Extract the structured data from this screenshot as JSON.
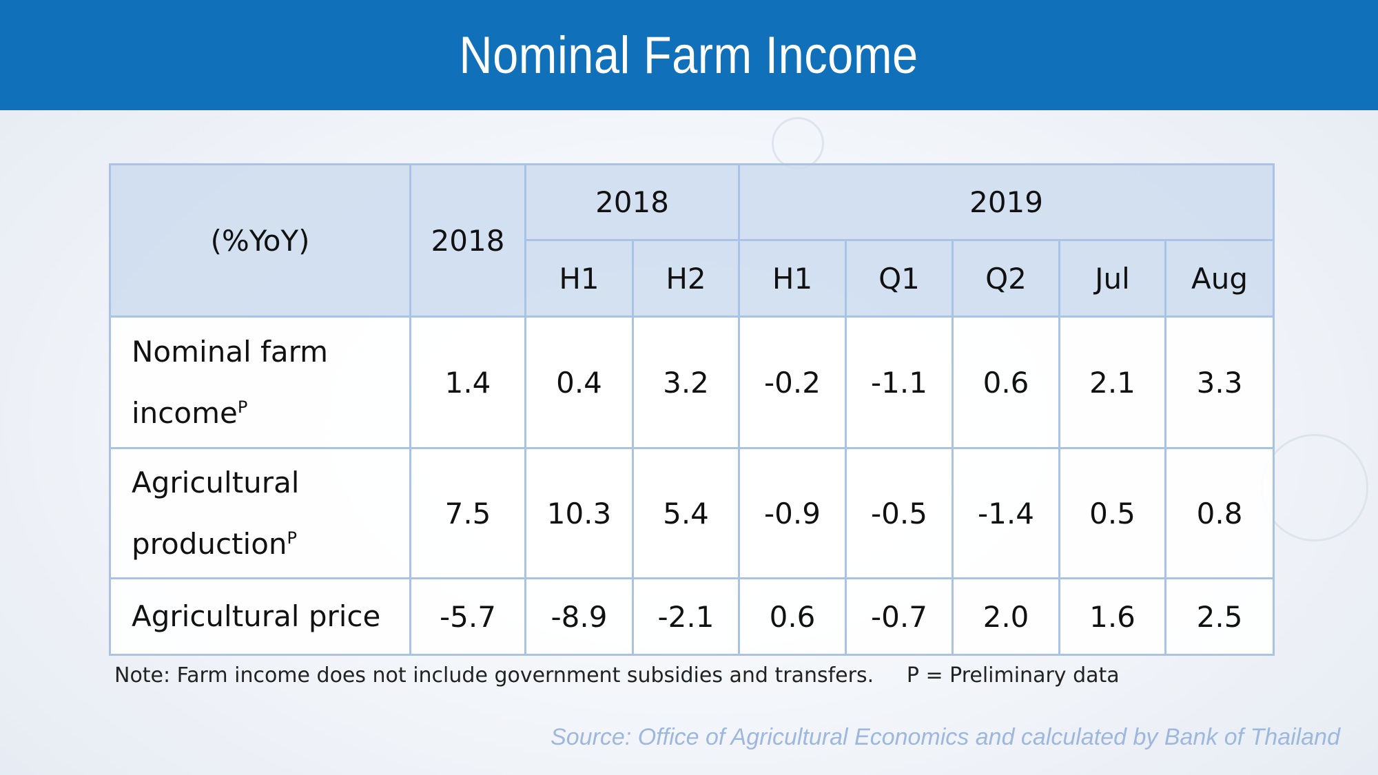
{
  "header": {
    "title": "Nominal Farm Income",
    "color": "#1170ba"
  },
  "table": {
    "unit_label": "(%YoY)",
    "year_col": "2018",
    "groups": [
      "2018",
      "2019"
    ],
    "subheaders": [
      "H1",
      "H2",
      "H1",
      "Q1",
      "Q2",
      "Jul",
      "Aug"
    ],
    "rows": [
      {
        "label": "Nominal farm income",
        "sup": "P",
        "values": [
          "1.4",
          "0.4",
          "3.2",
          "-0.2",
          "-1.1",
          "0.6",
          "2.1",
          "3.3"
        ]
      },
      {
        "label": "Agricultural production",
        "sup": "P",
        "values": [
          "7.5",
          "10.3",
          "5.4",
          "-0.9",
          "-0.5",
          "-1.4",
          "0.5",
          "0.8"
        ]
      },
      {
        "label": "Agricultural price",
        "sup": "",
        "values": [
          "-5.7",
          "-8.9",
          "-2.1",
          "0.6",
          "-0.7",
          "2.0",
          "1.6",
          "2.5"
        ]
      }
    ]
  },
  "note": "Note: Farm income does not include government subsidies and transfers.",
  "legend_note": "P = Preliminary data",
  "source": "Source: Office of Agricultural Economics and calculated by Bank of Thailand"
}
